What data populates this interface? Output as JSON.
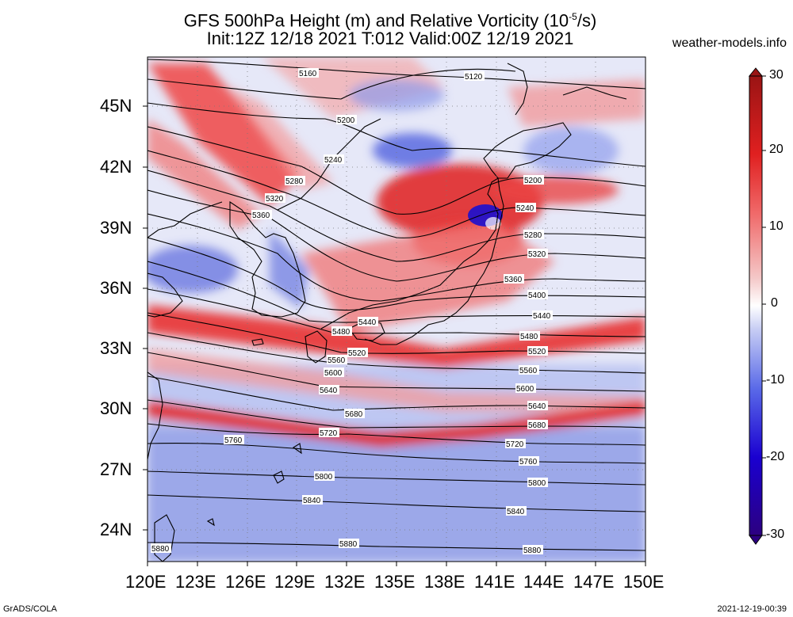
{
  "title": {
    "line1_prefix": "GFS 500hPa Height (m) and Relative Vorticity (10",
    "line1_exp": "-5",
    "line1_suffix": "/s)",
    "line2": "Init:12Z 12/18 2021 T:012 Valid:00Z 12/19 2021"
  },
  "site": "weather-models.info",
  "footer": {
    "left": "GrADS/COLA",
    "right": "2021-12-19-00:39"
  },
  "axes": {
    "lat_ticks": [
      "24N",
      "27N",
      "30N",
      "33N",
      "36N",
      "39N",
      "42N",
      "45N"
    ],
    "lon_ticks": [
      "120E",
      "123E",
      "126E",
      "129E",
      "132E",
      "135E",
      "138E",
      "141E",
      "144E",
      "147E",
      "150E"
    ]
  },
  "colorbar": {
    "labels": [
      "30",
      "20",
      "10",
      "0",
      "-10",
      "-20",
      "-30"
    ],
    "colors": [
      "#2c0080",
      "#1a00d0",
      "#4a5ae6",
      "#9aa6ee",
      "#d8dcf6",
      "#ffffff",
      "#f6d6d6",
      "#f08a8a",
      "#e83030",
      "#d01010",
      "#a01818"
    ]
  },
  "contours": {
    "labels": [
      "5120",
      "5160",
      "5200",
      "5200",
      "5240",
      "5240",
      "5280",
      "5280",
      "5320",
      "5320",
      "5360",
      "5360",
      "5400",
      "5440",
      "5440",
      "5480",
      "5480",
      "5520",
      "5520",
      "5560",
      "5560",
      "5600",
      "5600",
      "5640",
      "5640",
      "5680",
      "5680",
      "5720",
      "5720",
      "5760",
      "5760",
      "5800",
      "5800",
      "5840",
      "5840",
      "5880",
      "5880",
      "5880"
    ]
  }
}
